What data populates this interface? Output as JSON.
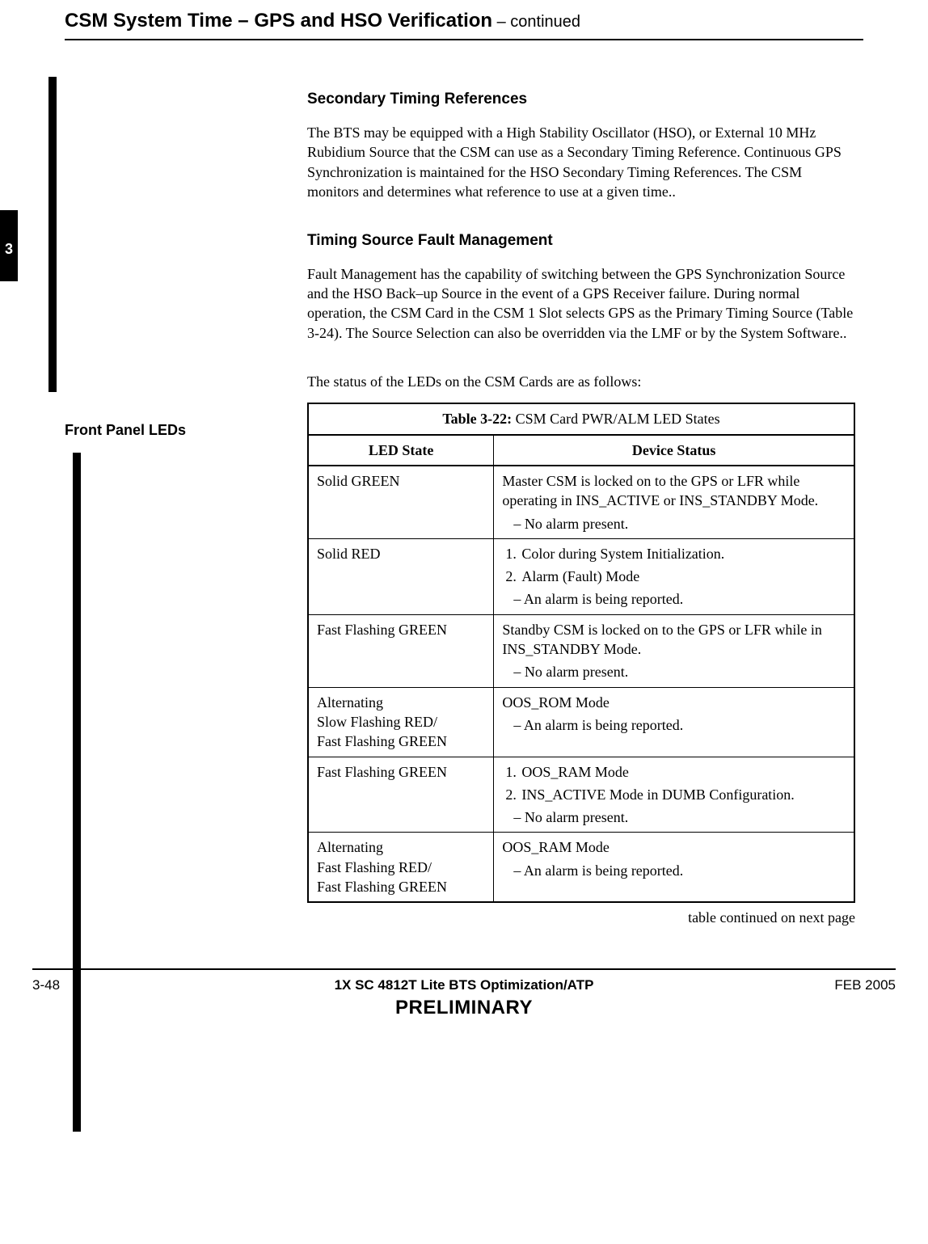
{
  "header": {
    "title": "CSM System Time – GPS and HSO Verification",
    "continued": " – continued"
  },
  "tab": {
    "label": "3"
  },
  "sections": {
    "secondary": {
      "heading": "Secondary Timing References",
      "body": " The BTS may be equipped with a High Stability Oscillator (HSO), or External 10 MHz Rubidium Source that the CSM can use as a Secondary Timing Reference. Continuous GPS Synchronization is maintained for the HSO Secondary Timing References. The CSM monitors and determines what reference to use at a given time.."
    },
    "fault": {
      "heading": "Timing Source Fault Management",
      "body": " Fault Management has the capability of switching between the GPS Synchronization Source and the HSO Back–up Source in the event of a GPS Receiver failure. During normal operation, the CSM Card in the CSM 1 Slot selects GPS as the Primary Timing Source (Table 3-24). The Source Selection can also be overridden via the LMF or by the System Software.."
    },
    "leds": {
      "side_heading": "Front Panel LEDs",
      "intro": "The status of the LEDs on the CSM Cards are as follows:"
    }
  },
  "table": {
    "caption_label": "Table 3-22:",
    "caption_text": " CSM Card PWR/ALM LED States",
    "columns": [
      "LED State",
      "Device Status"
    ],
    "rows": [
      {
        "state": "Solid GREEN",
        "status": {
          "lead": "Master CSM is locked on to the GPS or LFR while operating in INS_ACTIVE or INS_STANDBY Mode.",
          "dash": [
            "No alarm present."
          ]
        }
      },
      {
        "state": "Solid RED",
        "status": {
          "ol": [
            "Color during System Initialization.",
            "Alarm (Fault) Mode"
          ],
          "dash": [
            "An alarm is being reported."
          ]
        }
      },
      {
        "state": "Fast Flashing GREEN",
        "status": {
          "lead": "Standby CSM is locked on to the GPS or LFR while in INS_STANDBY Mode.",
          "dash": [
            "No alarm present."
          ]
        }
      },
      {
        "state_lines": [
          "Alternating",
          "Slow Flashing RED/",
          "Fast Flashing GREEN"
        ],
        "status": {
          "lead": "OOS_ROM Mode",
          "dash": [
            "An alarm is being reported."
          ]
        }
      },
      {
        "state": "Fast Flashing GREEN",
        "status": {
          "ol": [
            "OOS_RAM Mode",
            "INS_ACTIVE Mode in DUMB Configuration."
          ],
          "dash": [
            "No alarm present."
          ]
        }
      },
      {
        "state_lines": [
          "Alternating",
          "Fast Flashing RED/",
          "Fast Flashing GREEN"
        ],
        "status": {
          "lead": "OOS_RAM Mode",
          "dash": [
            "An alarm is being reported."
          ]
        }
      }
    ],
    "continued_text": "table continued on next page"
  },
  "footer": {
    "page_num": "3-48",
    "center_line1": "1X SC 4812T Lite BTS Optimization/ATP",
    "center_line2": "PRELIMINARY",
    "date": "FEB 2005"
  }
}
